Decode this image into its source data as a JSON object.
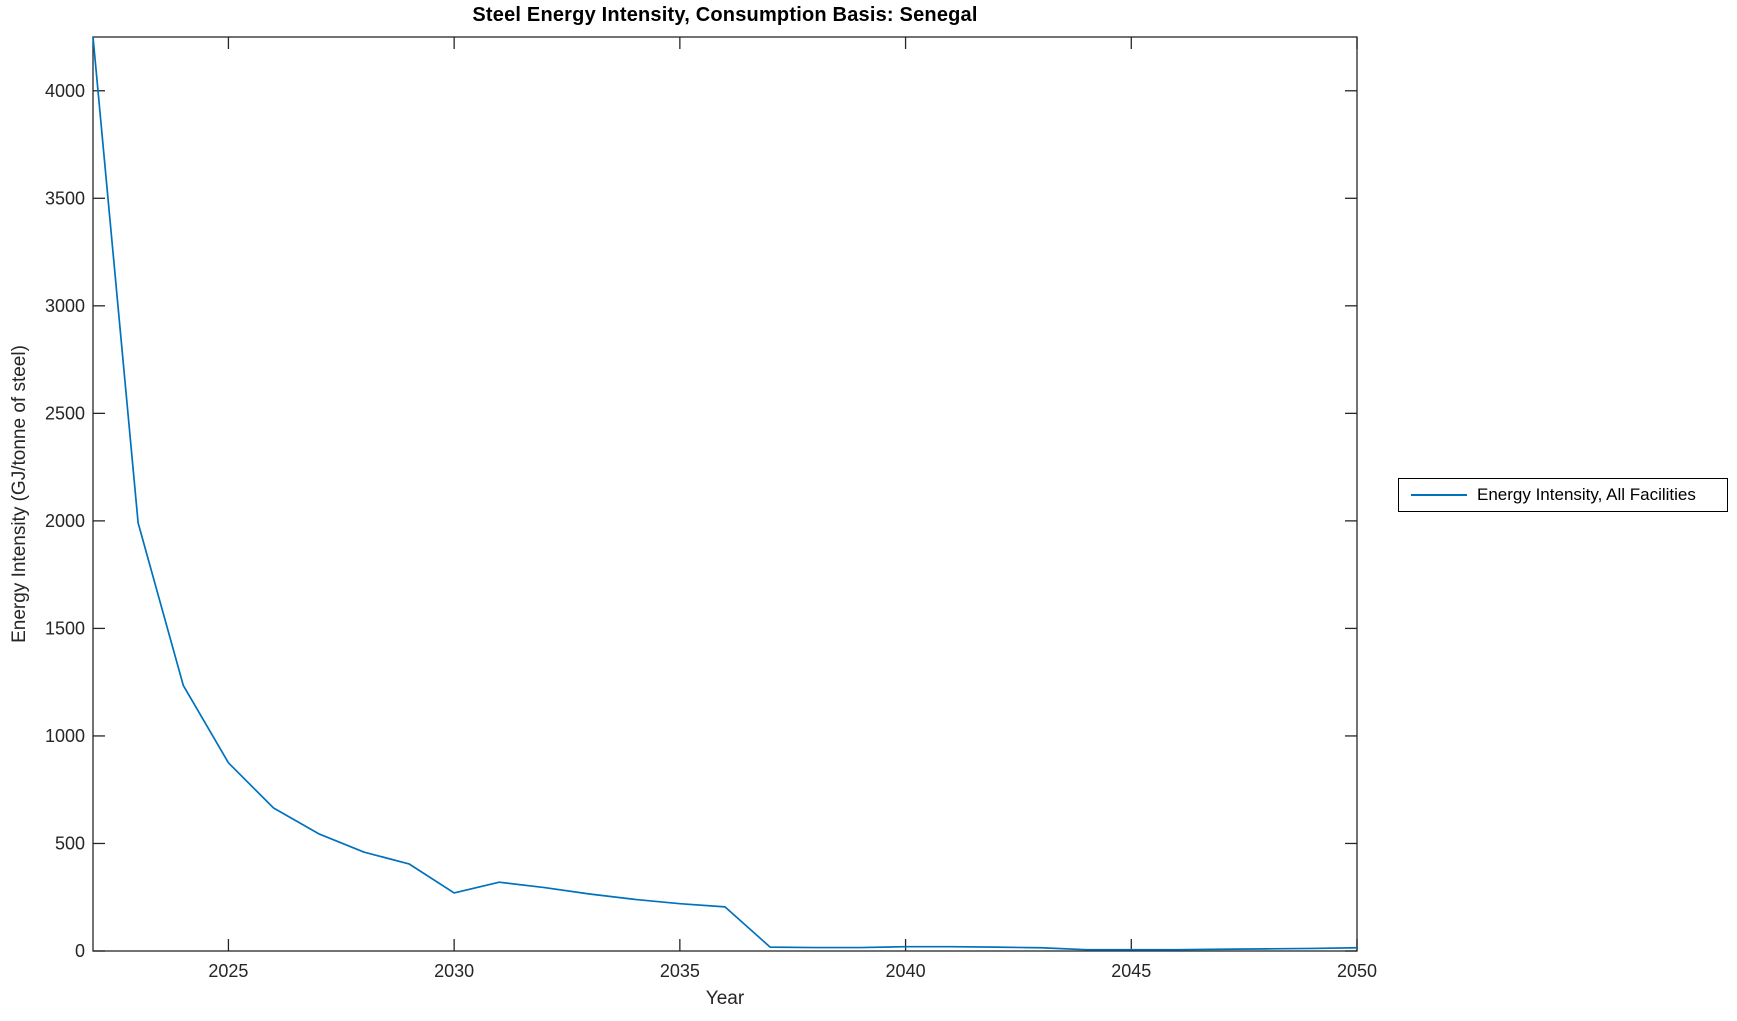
{
  "figure": {
    "background": "#ffffff",
    "axis_color": "#262626",
    "text_color": "#262626",
    "title_color": "#000000"
  },
  "chart_data": {
    "type": "line",
    "title": "Steel Energy Intensity, Consumption Basis: Senegal",
    "xlabel": "Year",
    "ylabel": "Energy Intensity (GJ/tonne of steel)",
    "xlim": [
      2022,
      2050
    ],
    "ylim": [
      0,
      4250
    ],
    "xticks": [
      2025,
      2030,
      2035,
      2040,
      2045,
      2050
    ],
    "yticks": [
      0,
      500,
      1000,
      1500,
      2000,
      2500,
      3000,
      3500,
      4000
    ],
    "grid": false,
    "box": true,
    "tick_direction": "in",
    "legend_position": "outside-right-center",
    "series": [
      {
        "name": "Energy Intensity, All Facilities",
        "color": "#0072BD",
        "x": [
          2022,
          2023,
          2024,
          2025,
          2026,
          2027,
          2028,
          2029,
          2030,
          2031,
          2032,
          2033,
          2034,
          2035,
          2036,
          2037,
          2038,
          2039,
          2040,
          2041,
          2042,
          2043,
          2044,
          2045,
          2046,
          2047,
          2048,
          2049,
          2050
        ],
        "values": [
          4250,
          1990,
          1235,
          875,
          665,
          545,
          460,
          405,
          270,
          320,
          295,
          265,
          240,
          220,
          205,
          18,
          16,
          16,
          20,
          20,
          18,
          15,
          6,
          6,
          6,
          8,
          10,
          12,
          15
        ]
      }
    ]
  },
  "legend": {
    "entries": [
      {
        "label": "Energy Intensity, All Facilities",
        "color": "#0072BD"
      }
    ]
  }
}
